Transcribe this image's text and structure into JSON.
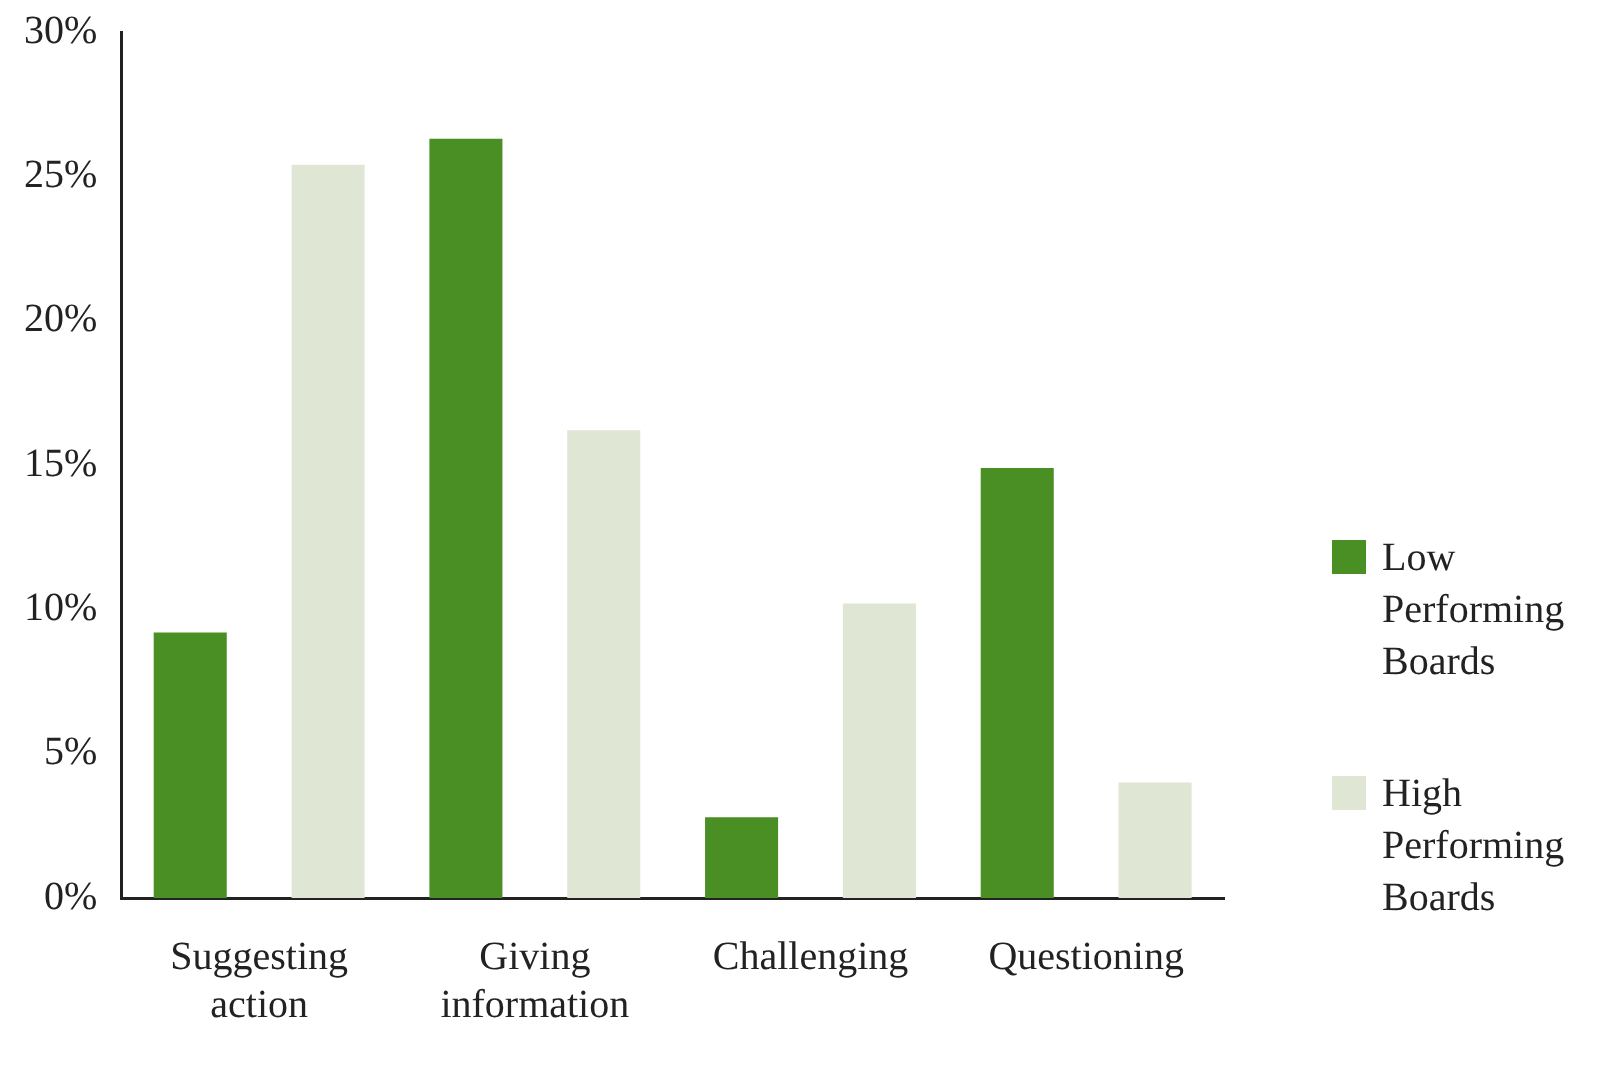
{
  "chart_data": {
    "type": "bar",
    "categories": [
      "Suggesting action",
      "Giving information",
      "Challenging",
      "Questioning"
    ],
    "series": [
      {
        "name": "Low Performing Boards",
        "color": "#4a8f24",
        "values": [
          9.2,
          26.3,
          2.8,
          14.9
        ]
      },
      {
        "name": "High Performing Boards",
        "color": "#dfe6d3",
        "values": [
          25.4,
          16.2,
          10.2,
          4.0
        ]
      }
    ],
    "ylim": [
      0,
      30
    ],
    "yticks": [
      {
        "value": 0,
        "label": "0%"
      },
      {
        "value": 5,
        "label": "5%"
      },
      {
        "value": 10,
        "label": "10%"
      },
      {
        "value": 15,
        "label": "15%"
      },
      {
        "value": 20,
        "label": "20%"
      },
      {
        "value": 25,
        "label": "25%"
      },
      {
        "value": 30,
        "label": "30%"
      }
    ],
    "grid": false,
    "legend": "right"
  }
}
